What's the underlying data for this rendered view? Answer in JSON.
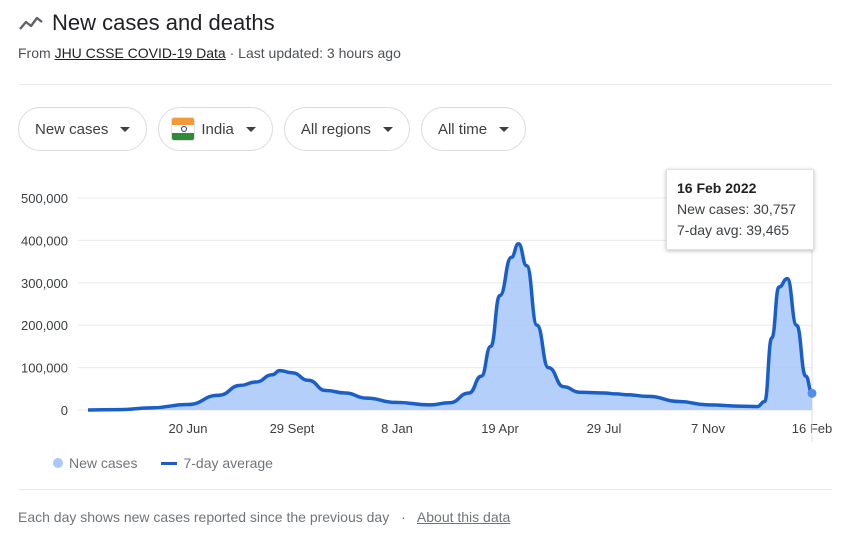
{
  "header": {
    "title": "New cases and deaths",
    "source_prefix": "From",
    "source_link": "JHU CSSE COVID-19 Data",
    "last_updated": "· Last updated: 3 hours ago"
  },
  "filters": {
    "metric": "New cases",
    "country": "India",
    "region": "All regions",
    "time": "All time"
  },
  "tooltip": {
    "date": "16 Feb 2022",
    "new_cases": "New cases: 30,757",
    "avg": "7-day avg: 39,465"
  },
  "legend": {
    "cases": "New cases",
    "avg": "7-day average"
  },
  "footer": {
    "note": "Each day shows new cases reported since the previous day",
    "separator": "·",
    "about": "About this data"
  },
  "colors": {
    "bar_fill": "#a8c7fa",
    "line": "#1a5fc8",
    "grid": "#e8eaed",
    "axis_text": "#3c4043"
  },
  "chart_data": {
    "type": "area",
    "ylim": [
      0,
      500000
    ],
    "yticks": [
      "0",
      "100,000",
      "200,000",
      "300,000",
      "400,000",
      "500,000"
    ],
    "xticks": [
      "20 Jun",
      "29 Sept",
      "8 Jan",
      "19 Apr",
      "29 Jul",
      "7 Nov",
      "16 Feb"
    ],
    "grid": true,
    "legend_position": "bottom-left",
    "series": [
      {
        "name": "7-day average",
        "x": [
          "2020-03-15",
          "2020-04-15",
          "2020-05-15",
          "2020-06-20",
          "2020-07-20",
          "2020-08-10",
          "2020-08-25",
          "2020-09-10",
          "2020-09-17",
          "2020-09-29",
          "2020-10-15",
          "2020-11-01",
          "2020-11-20",
          "2020-12-10",
          "2021-01-08",
          "2021-02-10",
          "2021-03-01",
          "2021-03-20",
          "2021-04-01",
          "2021-04-10",
          "2021-04-19",
          "2021-04-30",
          "2021-05-07",
          "2021-05-15",
          "2021-05-25",
          "2021-06-05",
          "2021-06-20",
          "2021-07-05",
          "2021-07-29",
          "2021-08-10",
          "2021-08-20",
          "2021-09-10",
          "2021-10-10",
          "2021-11-07",
          "2021-12-10",
          "2021-12-25",
          "2022-01-01",
          "2022-01-08",
          "2022-01-15",
          "2022-01-23",
          "2022-02-01",
          "2022-02-10",
          "2022-02-16"
        ],
        "values": [
          0,
          1000,
          5000,
          13000,
          35000,
          58000,
          66000,
          83000,
          93000,
          88000,
          70000,
          46000,
          40000,
          28000,
          18000,
          12000,
          17000,
          40000,
          80000,
          150000,
          270000,
          360000,
          392000,
          340000,
          200000,
          100000,
          55000,
          42000,
          40000,
          38000,
          36000,
          32000,
          20000,
          12000,
          9000,
          8000,
          20000,
          170000,
          290000,
          310000,
          200000,
          80000,
          39465
        ]
      }
    ]
  }
}
